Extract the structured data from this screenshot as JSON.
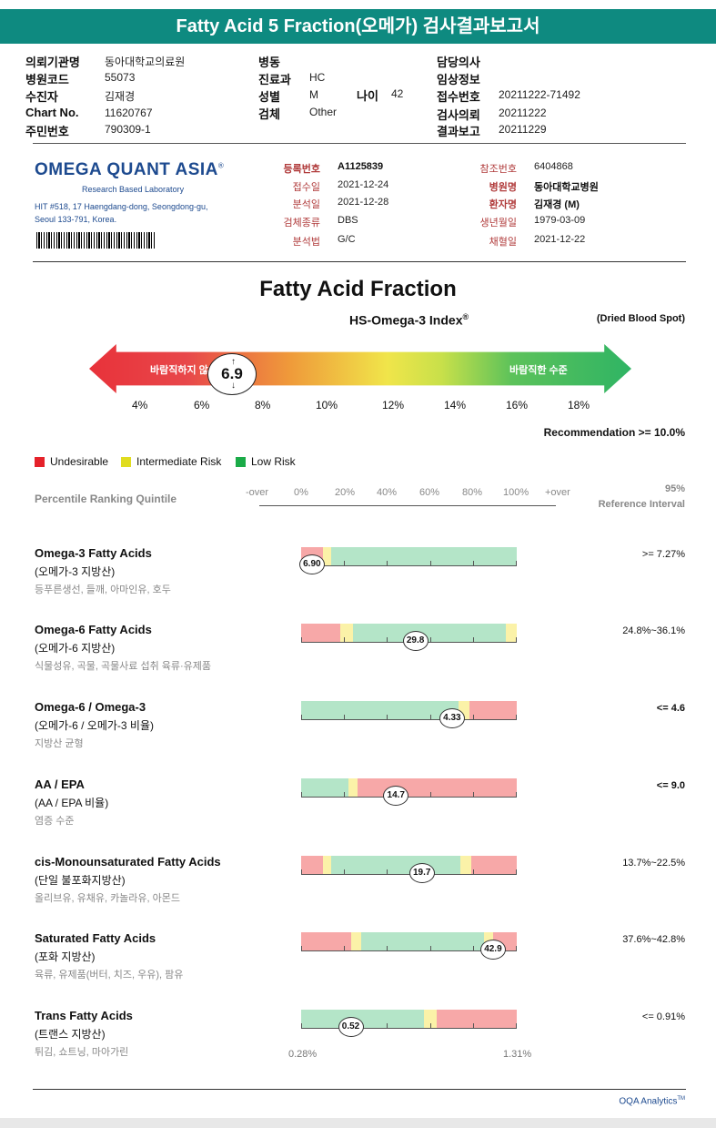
{
  "title": "Fatty Acid 5 Fraction(오메가) 검사결과보고서",
  "header": {
    "col1": [
      {
        "label": "의뢰기관명",
        "value": "동아대학교의료원"
      },
      {
        "label": "병원코드",
        "value": "55073"
      },
      {
        "label": "수진자",
        "value": "김재경"
      },
      {
        "label": "Chart No.",
        "value": "11620767"
      },
      {
        "label": "주민번호",
        "value": "790309-1"
      }
    ],
    "col2": [
      {
        "label": "병동",
        "value": ""
      },
      {
        "label": "진료과",
        "value": "HC"
      },
      {
        "label": "성별",
        "value": "M"
      },
      {
        "label": "검체",
        "value": "Other"
      }
    ],
    "age_label": "나이",
    "age_value": "42",
    "col3": [
      {
        "label": "담당의사",
        "value": ""
      },
      {
        "label": "임상정보",
        "value": ""
      },
      {
        "label": "접수번호",
        "value": "20211222-71492"
      },
      {
        "label": "검사의뢰",
        "value": "20211222"
      },
      {
        "label": "결과보고",
        "value": "20211229"
      }
    ]
  },
  "lab": {
    "logo": "OMEGA QUANT ASIA",
    "logo_mark": "®",
    "tagline": "Research Based Laboratory",
    "address_1": "HIT #518, 17 Haengdang-dong, Seongdong-gu,",
    "address_2": "Seoul 133-791, Korea."
  },
  "sample": {
    "left": [
      {
        "label": "등록번호",
        "value": "A1125839",
        "bold": true
      },
      {
        "label": "접수일",
        "value": "2021-12-24"
      },
      {
        "label": "분석일",
        "value": "2021-12-28"
      },
      {
        "label": "검체종류",
        "value": "DBS"
      },
      {
        "label": "분석법",
        "value": "G/C"
      }
    ],
    "right": [
      {
        "label": "참조번호",
        "value": "6404868"
      },
      {
        "label": "병원명",
        "value": "동아대학교병원",
        "bold": true
      },
      {
        "label": "환자명",
        "value": "김재경 (M)",
        "bold": true
      },
      {
        "label": "생년월일",
        "value": "1979-03-09"
      },
      {
        "label": "채혈일",
        "value": "2021-12-22"
      }
    ]
  },
  "index": {
    "main_title": "Fatty Acid Fraction",
    "index_title": "HS-Omega-3 Index",
    "index_sup": "®",
    "sample_type": "(Dried Blood Spot)",
    "bad_text": "바람직하지 않",
    "good_text": "바람직한 수준",
    "value": "6.9",
    "ticks": [
      "4%",
      "6%",
      "8%",
      "10%",
      "12%",
      "14%",
      "16%",
      "18%"
    ],
    "recommendation": "Recommendation  >= 10.0%"
  },
  "legend": [
    {
      "label": "Undesirable",
      "color": "#e5222a"
    },
    {
      "label": "Intermediate Risk",
      "color": "#e0dc20"
    },
    {
      "label": "Low Risk",
      "color": "#1bab48"
    }
  ],
  "percentile": {
    "label": "Percentile Ranking Quintile",
    "scale": [
      "-over",
      "0%",
      "20%",
      "40%",
      "60%",
      "80%",
      "100%",
      "+over"
    ],
    "ref_line1": "95%",
    "ref_line2": "Reference Interval"
  },
  "rows": [
    {
      "name": "Omega-3 Fatty Acids",
      "kr": "(오메가-3 지방산)",
      "desc": "등푸른생선, 들깨, 아마인유, 호두",
      "value": "6.90",
      "marker_pct": 0.05,
      "ref": ">= 7.27%",
      "ref_bold": false,
      "zones": [
        {
          "from": 0,
          "to": 0.1,
          "color": "#f7a8a8"
        },
        {
          "from": 0.1,
          "to": 0.14,
          "color": "#fbf2a8"
        },
        {
          "from": 0.14,
          "to": 1,
          "color": "#b4e5c8"
        }
      ]
    },
    {
      "name": "Omega-6 Fatty Acids",
      "kr": "(오메가-6 지방산)",
      "desc": "식물성유, 곡물, 곡물사료 섭취 육류·유제품",
      "value": "29.8",
      "marker_pct": 0.53,
      "ref": "24.8%~36.1%",
      "ref_bold": false,
      "zones": [
        {
          "from": 0,
          "to": 0.18,
          "color": "#f7a8a8"
        },
        {
          "from": 0.18,
          "to": 0.24,
          "color": "#fbf2a8"
        },
        {
          "from": 0.24,
          "to": 0.95,
          "color": "#b4e5c8"
        },
        {
          "from": 0.95,
          "to": 1,
          "color": "#fbf2a8"
        }
      ]
    },
    {
      "name": "Omega-6 / Omega-3",
      "kr": "(오메가-6 / 오메가-3 비율)",
      "desc": "지방산 균형",
      "value": "4.33",
      "marker_pct": 0.7,
      "ref": "<= 4.6",
      "ref_bold": true,
      "zones": [
        {
          "from": 0,
          "to": 0.73,
          "color": "#b4e5c8"
        },
        {
          "from": 0.73,
          "to": 0.78,
          "color": "#fbf2a8"
        },
        {
          "from": 0.78,
          "to": 1,
          "color": "#f7a8a8"
        }
      ]
    },
    {
      "name": "AA / EPA",
      "kr": "(AA / EPA 비율)",
      "desc": "염증 수준",
      "value": "14.7",
      "marker_pct": 0.44,
      "ref": "<= 9.0",
      "ref_bold": true,
      "zones": [
        {
          "from": 0,
          "to": 0.22,
          "color": "#b4e5c8"
        },
        {
          "from": 0.22,
          "to": 0.26,
          "color": "#fbf2a8"
        },
        {
          "from": 0.26,
          "to": 1,
          "color": "#f7a8a8"
        }
      ]
    },
    {
      "name": "cis-Monounsaturated Fatty Acids",
      "kr": "(단일 불포화지방산)",
      "desc": "올리브유, 유채유, 카놀라유, 아몬드",
      "value": "19.7",
      "marker_pct": 0.56,
      "ref": "13.7%~22.5%",
      "ref_bold": false,
      "zones": [
        {
          "from": 0,
          "to": 0.1,
          "color": "#f7a8a8"
        },
        {
          "from": 0.1,
          "to": 0.14,
          "color": "#fbf2a8"
        },
        {
          "from": 0.14,
          "to": 0.74,
          "color": "#b4e5c8"
        },
        {
          "from": 0.74,
          "to": 0.79,
          "color": "#fbf2a8"
        },
        {
          "from": 0.79,
          "to": 1,
          "color": "#f7a8a8"
        }
      ]
    },
    {
      "name": "Saturated Fatty Acids",
      "kr": "(포화 지방산)",
      "desc": "육류, 유제품(버터, 치즈, 우유), 팜유",
      "value": "42.9",
      "marker_pct": 0.89,
      "ref": "37.6%~42.8%",
      "ref_bold": false,
      "zones": [
        {
          "from": 0,
          "to": 0.23,
          "color": "#f7a8a8"
        },
        {
          "from": 0.23,
          "to": 0.28,
          "color": "#fbf2a8"
        },
        {
          "from": 0.28,
          "to": 0.85,
          "color": "#b4e5c8"
        },
        {
          "from": 0.85,
          "to": 0.89,
          "color": "#fbf2a8"
        },
        {
          "from": 0.89,
          "to": 1,
          "color": "#f7a8a8"
        }
      ]
    },
    {
      "name": "Trans Fatty Acids",
      "kr": "(트랜스 지방산)",
      "desc": "튀김, 쇼트닝, 마아가린",
      "value": "0.52",
      "marker_pct": 0.23,
      "ref": "<= 0.91%",
      "ref_bold": false,
      "zones": [
        {
          "from": 0,
          "to": 0.57,
          "color": "#b4e5c8"
        },
        {
          "from": 0.57,
          "to": 0.63,
          "color": "#fbf2a8"
        },
        {
          "from": 0.63,
          "to": 1,
          "color": "#f7a8a8"
        }
      ]
    }
  ],
  "bottom_scale": {
    "min": "0.28%",
    "max": "1.31%"
  },
  "footer": "OQA Analytics",
  "footer_mark": "TM"
}
